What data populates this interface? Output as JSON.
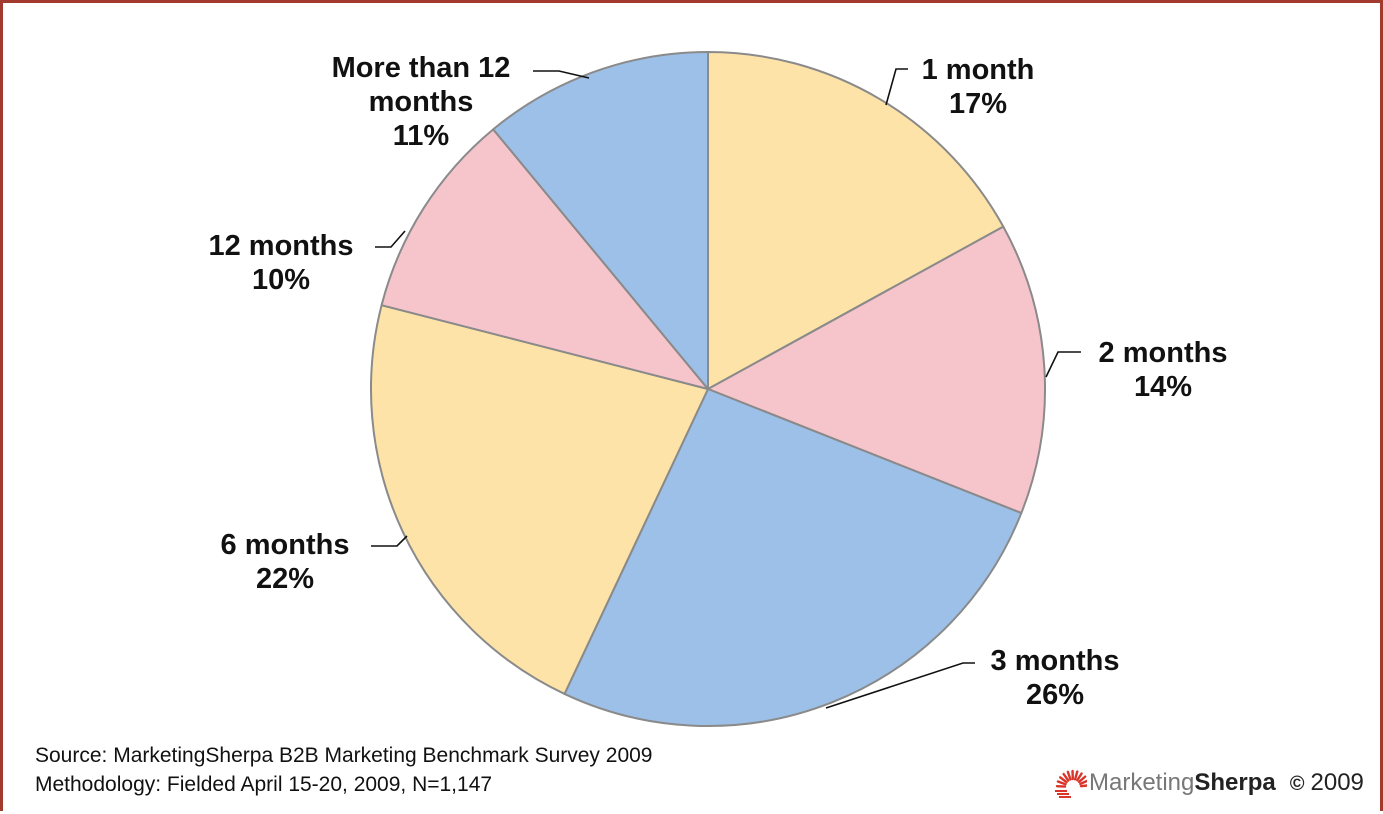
{
  "chart_data": {
    "type": "pie",
    "title": "",
    "start_angle_deg": 0,
    "direction": "clockwise",
    "slices": [
      {
        "label": "1 month",
        "value": 17,
        "value_label": "17%",
        "color": "#fde3a7"
      },
      {
        "label": "2 months",
        "value": 14,
        "value_label": "14%",
        "color": "#f6c5cc"
      },
      {
        "label": "3 months",
        "value": 26,
        "value_label": "26%",
        "color": "#9dc0e8"
      },
      {
        "label": "6 months",
        "value": 22,
        "value_label": "22%",
        "color": "#fde3a7"
      },
      {
        "label": "12 months",
        "value": 10,
        "value_label": "10%",
        "color": "#f6c5cc"
      },
      {
        "label": "More than 12 months",
        "value": 11,
        "value_label": "11%",
        "color": "#9dc0e8"
      }
    ],
    "legend": "none",
    "slice_edge_color": "#8a8a8a"
  },
  "footer": {
    "source": "Source: MarketingSherpa B2B Marketing Benchmark Survey 2009",
    "methodology": "Methodology: Fielded  April 15-20, 2009, N=1,147"
  },
  "brand": {
    "name_light": "Marketing",
    "name_bold": "Sherpa",
    "copyright_symbol": "©",
    "copyright_year": "2009",
    "logo_icon": "sun-rays-icon",
    "logo_color": "#d9352a"
  },
  "frame_color": "#a33a2e"
}
